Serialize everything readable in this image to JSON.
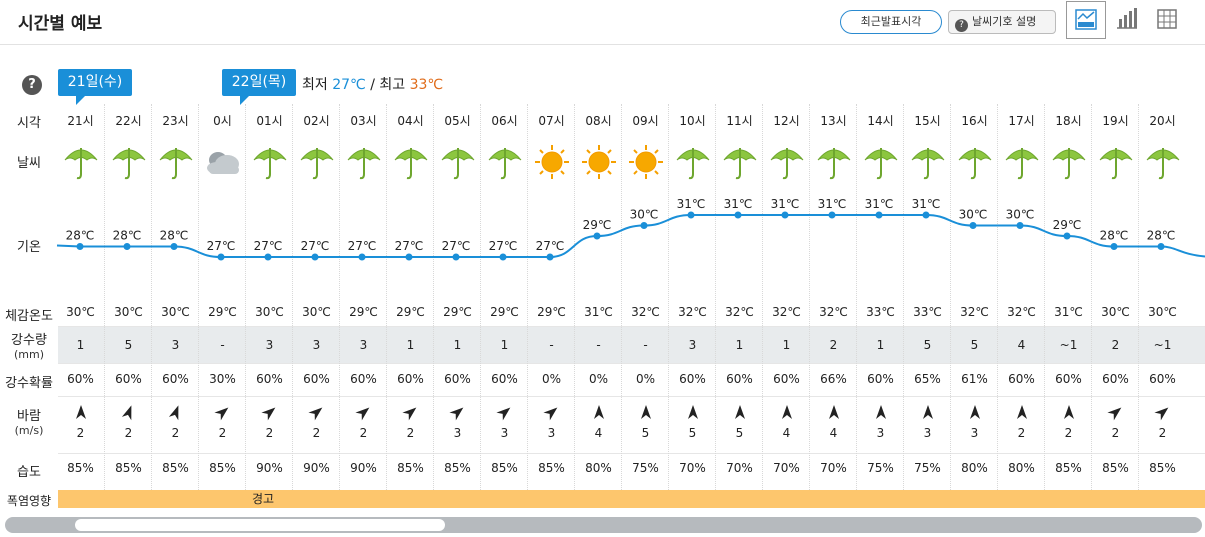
{
  "header": {
    "title": "시간별 예보",
    "latest_button": "최근발표시각",
    "legend_button": "날씨기호 설명",
    "legend_icon": "?"
  },
  "help_icon": "?",
  "days": [
    {
      "label": "21일(수)"
    },
    {
      "label": "22일(목)"
    }
  ],
  "minmax": {
    "min_label": "최저",
    "min_value": "27℃",
    "separator": "/",
    "max_label": "최고",
    "max_value": "33℃"
  },
  "row_labels": {
    "time": "시각",
    "weather": "날씨",
    "temp": "기온",
    "feels": "체감온도",
    "rain": "강수량",
    "rain_unit": "(mm)",
    "rain_prob": "강수확률",
    "wind": "바람",
    "wind_unit": "(m/s)",
    "humidity": "습도",
    "heat": "폭염영향"
  },
  "hours": [
    {
      "time": "21시",
      "weather": "rain",
      "temp": 28,
      "temp_label": "28℃",
      "feels": "30℃",
      "rain": "1",
      "prob": "60%",
      "wind_dir": 0,
      "wind": "2",
      "hum": "85%"
    },
    {
      "time": "22시",
      "weather": "rain",
      "temp": 28,
      "temp_label": "28℃",
      "feels": "30℃",
      "rain": "5",
      "prob": "60%",
      "wind_dir": 20,
      "wind": "2",
      "hum": "85%"
    },
    {
      "time": "23시",
      "weather": "rain",
      "temp": 28,
      "temp_label": "28℃",
      "feels": "30℃",
      "rain": "3",
      "prob": "60%",
      "wind_dir": 20,
      "wind": "2",
      "hum": "85%"
    },
    {
      "time": "0시",
      "weather": "cloudy",
      "temp": 27,
      "temp_label": "27℃",
      "feels": "29℃",
      "rain": "-",
      "prob": "30%",
      "wind_dir": 50,
      "wind": "2",
      "hum": "85%"
    },
    {
      "time": "01시",
      "weather": "rain",
      "temp": 27,
      "temp_label": "27℃",
      "feels": "30℃",
      "rain": "3",
      "prob": "60%",
      "wind_dir": 50,
      "wind": "2",
      "hum": "90%"
    },
    {
      "time": "02시",
      "weather": "rain",
      "temp": 27,
      "temp_label": "27℃",
      "feels": "30℃",
      "rain": "3",
      "prob": "60%",
      "wind_dir": 50,
      "wind": "2",
      "hum": "90%"
    },
    {
      "time": "03시",
      "weather": "rain",
      "temp": 27,
      "temp_label": "27℃",
      "feels": "29℃",
      "rain": "3",
      "prob": "60%",
      "wind_dir": 50,
      "wind": "2",
      "hum": "90%"
    },
    {
      "time": "04시",
      "weather": "rain",
      "temp": 27,
      "temp_label": "27℃",
      "feels": "29℃",
      "rain": "1",
      "prob": "60%",
      "wind_dir": 50,
      "wind": "2",
      "hum": "85%"
    },
    {
      "time": "05시",
      "weather": "rain",
      "temp": 27,
      "temp_label": "27℃",
      "feels": "29℃",
      "rain": "1",
      "prob": "60%",
      "wind_dir": 50,
      "wind": "3",
      "hum": "85%"
    },
    {
      "time": "06시",
      "weather": "rain",
      "temp": 27,
      "temp_label": "27℃",
      "feels": "29℃",
      "rain": "1",
      "prob": "60%",
      "wind_dir": 50,
      "wind": "3",
      "hum": "85%"
    },
    {
      "time": "07시",
      "weather": "sunny",
      "temp": 27,
      "temp_label": "27℃",
      "feels": "29℃",
      "rain": "-",
      "prob": "0%",
      "wind_dir": 50,
      "wind": "3",
      "hum": "85%"
    },
    {
      "time": "08시",
      "weather": "sunny",
      "temp": 29,
      "temp_label": "29℃",
      "feels": "31℃",
      "rain": "-",
      "prob": "0%",
      "wind_dir": 0,
      "wind": "4",
      "hum": "80%"
    },
    {
      "time": "09시",
      "weather": "sunny",
      "temp": 30,
      "temp_label": "30℃",
      "feels": "32℃",
      "rain": "-",
      "prob": "0%",
      "wind_dir": 0,
      "wind": "5",
      "hum": "75%"
    },
    {
      "time": "10시",
      "weather": "rain",
      "temp": 31,
      "temp_label": "31℃",
      "feels": "32℃",
      "rain": "3",
      "prob": "60%",
      "wind_dir": 0,
      "wind": "5",
      "hum": "70%"
    },
    {
      "time": "11시",
      "weather": "rain",
      "temp": 31,
      "temp_label": "31℃",
      "feels": "32℃",
      "rain": "1",
      "prob": "60%",
      "wind_dir": 0,
      "wind": "5",
      "hum": "70%"
    },
    {
      "time": "12시",
      "weather": "rain",
      "temp": 31,
      "temp_label": "31℃",
      "feels": "32℃",
      "rain": "1",
      "prob": "60%",
      "wind_dir": 0,
      "wind": "4",
      "hum": "70%"
    },
    {
      "time": "13시",
      "weather": "rain",
      "temp": 31,
      "temp_label": "31℃",
      "feels": "32℃",
      "rain": "2",
      "prob": "66%",
      "wind_dir": 0,
      "wind": "4",
      "hum": "70%"
    },
    {
      "time": "14시",
      "weather": "rain",
      "temp": 31,
      "temp_label": "31℃",
      "feels": "33℃",
      "rain": "1",
      "prob": "60%",
      "wind_dir": 0,
      "wind": "3",
      "hum": "75%"
    },
    {
      "time": "15시",
      "weather": "rain",
      "temp": 31,
      "temp_label": "31℃",
      "feels": "33℃",
      "rain": "5",
      "prob": "65%",
      "wind_dir": 0,
      "wind": "3",
      "hum": "75%"
    },
    {
      "time": "16시",
      "weather": "rain",
      "temp": 30,
      "temp_label": "30℃",
      "feels": "32℃",
      "rain": "5",
      "prob": "61%",
      "wind_dir": 0,
      "wind": "3",
      "hum": "80%"
    },
    {
      "time": "17시",
      "weather": "rain",
      "temp": 30,
      "temp_label": "30℃",
      "feels": "32℃",
      "rain": "4",
      "prob": "60%",
      "wind_dir": 0,
      "wind": "2",
      "hum": "80%"
    },
    {
      "time": "18시",
      "weather": "rain",
      "temp": 29,
      "temp_label": "29℃",
      "feels": "31℃",
      "rain": "~1",
      "prob": "60%",
      "wind_dir": 0,
      "wind": "2",
      "hum": "85%"
    },
    {
      "time": "19시",
      "weather": "rain",
      "temp": 28,
      "temp_label": "28℃",
      "feels": "30℃",
      "rain": "2",
      "prob": "60%",
      "wind_dir": 50,
      "wind": "2",
      "hum": "85%"
    },
    {
      "time": "20시",
      "weather": "rain",
      "temp": 28,
      "temp_label": "28℃",
      "feels": "30℃",
      "rain": "~1",
      "prob": "60%",
      "wind_dir": 50,
      "wind": "2",
      "hum": "85%"
    }
  ],
  "heat": {
    "text": "경고",
    "color": "#fdc66d"
  },
  "colors": {
    "accent": "#1a8fd8",
    "max": "#e06c1a",
    "rain_band": "#e8ebed",
    "umbrella": "#8cc63f",
    "sun": "#f5a000"
  }
}
